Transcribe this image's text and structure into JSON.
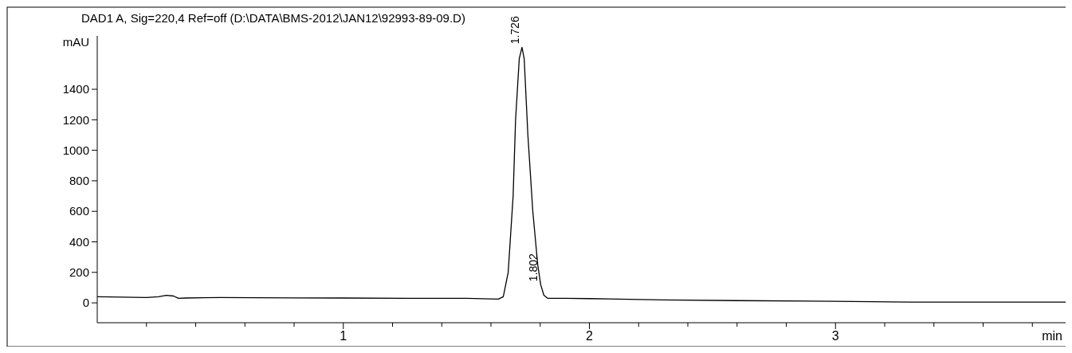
{
  "chart_data": {
    "type": "line",
    "title": "DAD1 A, Sig=220,4 Ref=off (D:\\DATA\\BMS-2012\\JAN12\\92993-89-09.D)",
    "xlabel": "min",
    "ylabel": "mAU",
    "x": [
      0,
      0.1,
      0.2,
      0.25,
      0.28,
      0.31,
      0.33,
      0.36,
      0.5,
      0.8,
      1.0,
      1.3,
      1.5,
      1.63,
      1.65,
      1.67,
      1.69,
      1.7,
      1.715,
      1.726,
      1.735,
      1.75,
      1.77,
      1.79,
      1.802,
      1.815,
      1.83,
      1.9,
      2.0,
      2.3,
      2.6,
      3.0,
      3.3,
      4.0
    ],
    "series": [
      {
        "color": "#000000",
        "values": [
          40,
          38,
          35,
          40,
          50,
          45,
          30,
          32,
          35,
          33,
          32,
          30,
          30,
          25,
          40,
          200,
          700,
          1200,
          1600,
          1675,
          1600,
          1100,
          600,
          250,
          120,
          50,
          30,
          30,
          28,
          20,
          15,
          10,
          5,
          5
        ]
      }
    ],
    "xlim": [
      0,
      4
    ],
    "ylim": [
      -130,
      1750
    ],
    "xticks": [
      {
        "value": 0.2,
        "label": null
      },
      {
        "value": 0.4,
        "label": null
      },
      {
        "value": 0.6,
        "label": null
      },
      {
        "value": 0.8,
        "label": null
      },
      1,
      {
        "value": 1.2,
        "label": null
      },
      {
        "value": 1.4,
        "label": null
      },
      {
        "value": 1.6,
        "label": null
      },
      {
        "value": 1.8,
        "label": null
      },
      2,
      {
        "value": 2.2,
        "label": null
      },
      {
        "value": 2.4,
        "label": null
      },
      {
        "value": 2.6,
        "label": null
      },
      {
        "value": 2.8,
        "label": null
      },
      3,
      {
        "value": 3.2,
        "label": null
      },
      {
        "value": 3.4,
        "label": null
      },
      {
        "value": 3.6,
        "label": null
      },
      {
        "value": 3.8,
        "label": null
      }
    ],
    "yticks": [
      0,
      200,
      400,
      600,
      800,
      1000,
      1200,
      1400
    ],
    "annotations": [
      {
        "text": "1.726",
        "x": 1.726,
        "y": 1675
      },
      {
        "text": "1.802",
        "x": 1.802,
        "y": 120
      }
    ],
    "grid": false,
    "marker": "none",
    "line_style": "solid"
  }
}
